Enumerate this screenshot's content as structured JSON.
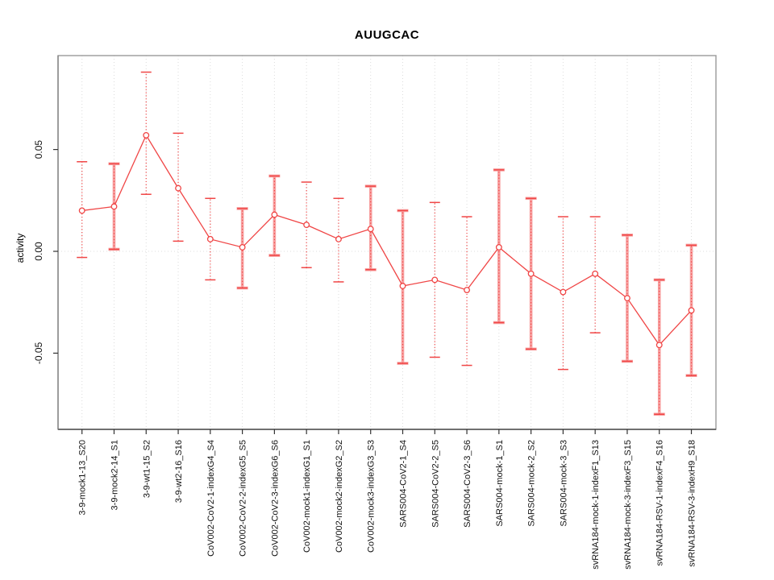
{
  "title": "AUUGCAC",
  "colors": {
    "point_red": "#F04646",
    "band_pink": "#F7A0A0",
    "grid_gray": "#DCDCDC",
    "box_gray": "#999999",
    "axis_dark": "#333333",
    "text_black": "#000000"
  },
  "chart_data": {
    "type": "line",
    "title": "AUUGCAC",
    "xlabel": "",
    "ylabel": "activity",
    "ylim": [
      -0.09,
      0.095
    ],
    "yticks": [
      0.05,
      0,
      -0.05
    ],
    "ytick_labels": [
      "0.05",
      "0.00",
      "-0.05"
    ],
    "grid": "dotted light-gray vertical line at every category; dotted horizontal line at y=0",
    "legend": "none",
    "marker": "open-circle",
    "categories": [
      "3-9-mock1-13_S20",
      "3-9-mock2-14_S1",
      "3-9-wt1-15_S2",
      "3-9-wt2-16_S16",
      "CoV002-CoV2-1-indexG4_S4",
      "CoV002-CoV2-2-indexG5_S5",
      "CoV002-CoV2-3-indexG6_S6",
      "CoV002-mock1-indexG1_S1",
      "CoV002-mock2-indexG2_S2",
      "CoV002-mock3-indexG3_S3",
      "SARS004-CoV2-1_S4",
      "SARS004-CoV2-2_S5",
      "SARS004-CoV2-3_S6",
      "SARS004-mock-1_S1",
      "SARS004-mock-2_S2",
      "SARS004-mock-3_S3",
      "svRNA184-mock-1-indexF1_S13",
      "svRNA184-mock-3-indexF3_S15",
      "svRNA184-RSV-1-indexF4_S16",
      "svRNA184-RSV-3-indexH9_S18"
    ],
    "series": [
      {
        "name": "activity",
        "values": [
          0.02,
          0.022,
          0.057,
          0.031,
          0.006,
          0.002,
          0.018,
          0.013,
          0.006,
          0.011,
          -0.017,
          -0.014,
          -0.019,
          0.002,
          -0.011,
          -0.02,
          -0.011,
          -0.023,
          -0.046,
          -0.029
        ],
        "error_low": [
          -0.003,
          0.001,
          0.028,
          0.005,
          -0.014,
          -0.018,
          -0.002,
          -0.008,
          -0.015,
          -0.009,
          -0.055,
          -0.052,
          -0.056,
          -0.035,
          -0.048,
          -0.058,
          -0.04,
          -0.054,
          -0.08,
          -0.061
        ],
        "error_high": [
          0.044,
          0.043,
          0.088,
          0.058,
          0.026,
          0.021,
          0.037,
          0.034,
          0.026,
          0.032,
          0.02,
          0.024,
          0.017,
          0.04,
          0.026,
          0.017,
          0.017,
          0.008,
          -0.014,
          0.003
        ],
        "bar_style": [
          "dotted",
          "band",
          "dotted",
          "dotted",
          "dotted",
          "band",
          "band",
          "dotted",
          "dotted",
          "band",
          "band",
          "dotted",
          "dotted",
          "band",
          "band",
          "dotted",
          "dotted",
          "band",
          "band",
          "band"
        ]
      }
    ]
  }
}
